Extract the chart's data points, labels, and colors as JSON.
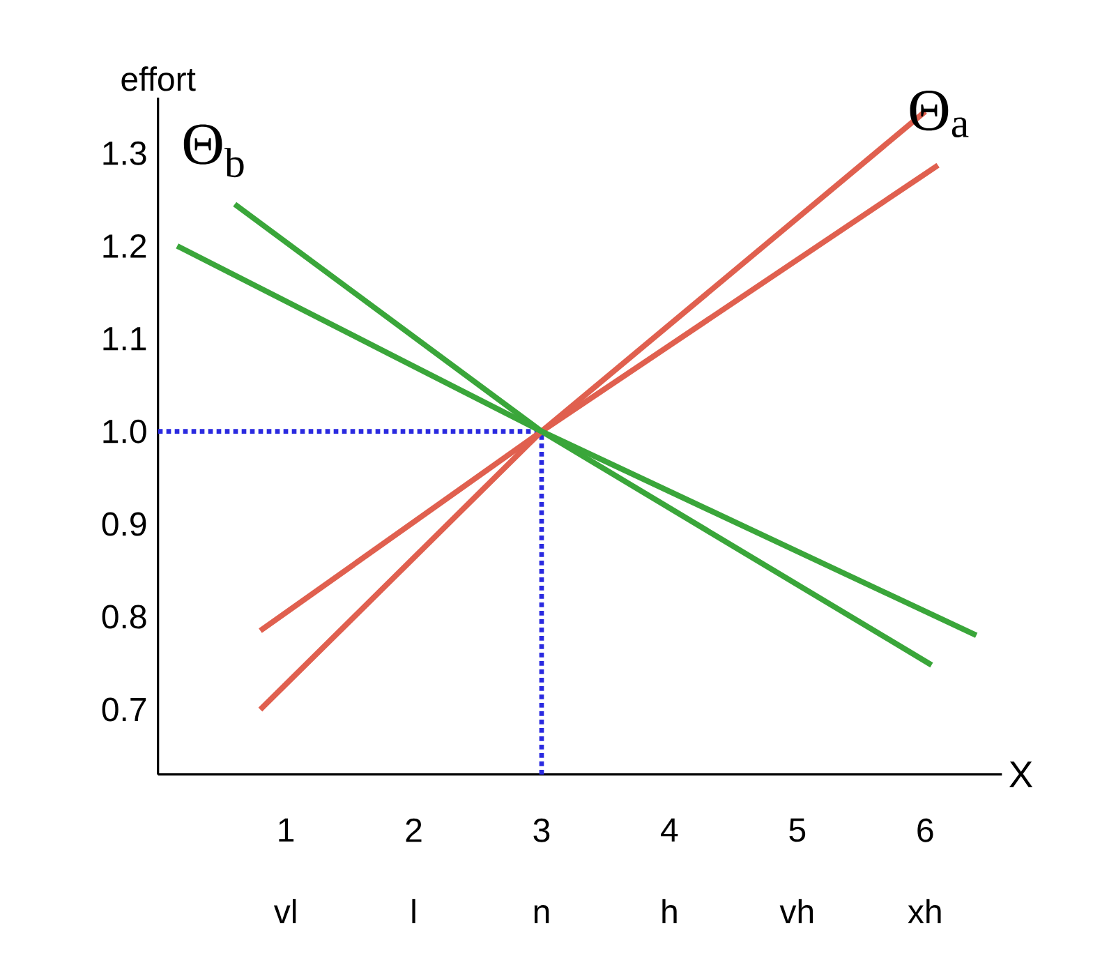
{
  "chart_data": {
    "type": "line",
    "xlabel": "X",
    "ylabel": "effort",
    "xlim": [
      0,
      6.6
    ],
    "ylim": [
      0.63,
      1.36
    ],
    "xticks": [
      1,
      2,
      3,
      4,
      5,
      6
    ],
    "yticks": [
      0.7,
      0.8,
      0.9,
      {
        "value": 1.0,
        "label": "1.0"
      },
      1.1,
      1.2,
      1.3
    ],
    "series": [
      {
        "color": "#e0604f",
        "x": [
          0.8,
          3,
          6.0
        ],
        "values": [
          0.7,
          1.0,
          1.345
        ]
      },
      {
        "color": "#e0604f",
        "x": [
          0.8,
          3,
          6.1
        ],
        "values": [
          0.785,
          1.0,
          1.287
        ]
      },
      {
        "color": "#3aa63a",
        "x": [
          0.6,
          3,
          6.05
        ],
        "values": [
          1.245,
          1.0,
          0.748
        ]
      },
      {
        "color": "#3aa63a",
        "x": [
          0.15,
          3,
          6.4
        ],
        "values": [
          1.2,
          1.0,
          0.78
        ]
      }
    ],
    "ref_lines": [
      {
        "axis": "y",
        "value": 1.0,
        "color": "#2a2ae0",
        "line_style": "dotted"
      },
      {
        "axis": "x",
        "value": 3,
        "color": "#2a2ae0",
        "line_style": "dotted"
      }
    ],
    "annotations": [
      "Θ$_{b}$",
      "Θ$_{a}$",
      "vl",
      "l",
      "n",
      "h",
      "vh",
      "xh"
    ],
    "marker": "none",
    "line_style": "solid"
  }
}
